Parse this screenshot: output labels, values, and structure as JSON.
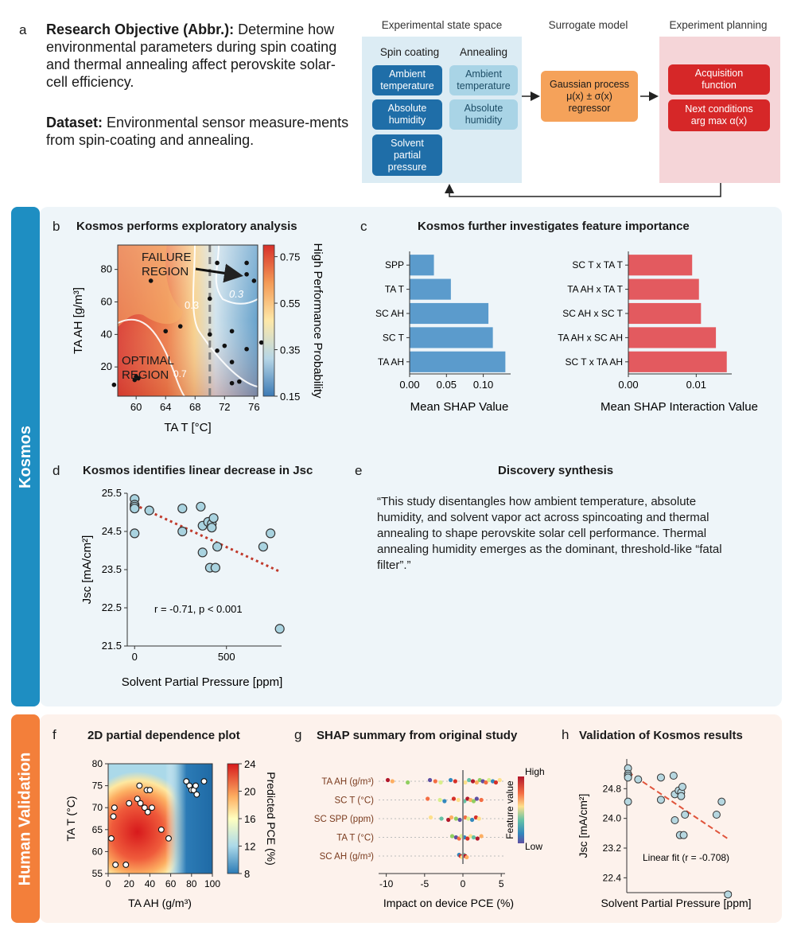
{
  "panel_a": {
    "letter": "a",
    "objective_label": "Research Objective (Abbr.):",
    "objective_text": "Determine how environmental parameters during spin coating and thermal annealing affect perovskite solar-cell efficiency.",
    "dataset_label": "Dataset:",
    "dataset_text": "Environmental sensor measure-ments from spin-coating and annealing.",
    "diagram": {
      "state_space_title": "Experimental state space",
      "surrogate_title": "Surrogate model",
      "planning_title": "Experiment planning",
      "spin_coating_header": "Spin coating",
      "annealing_header": "Annealing",
      "spin_boxes": [
        "Ambient\ntemperature",
        "Absolute\nhumidity",
        "Solvent\npartial\npressure"
      ],
      "anneal_boxes": [
        "Ambient\ntemperature",
        "Absolute\nhumidity"
      ],
      "surrogate_box": "Gaussian process\nμ(x) ± σ(x)\nregressor",
      "planning_boxes": [
        "Acquisition\nfunction",
        "Next conditions\narg max α(x)"
      ],
      "colors": {
        "state_bg": "#dcecf4",
        "planning_bg": "#f5d5d8",
        "dark_blue": "#1f6ea8",
        "light_blue": "#a9d4e6",
        "orange": "#f5a25a",
        "red": "#d62728"
      }
    }
  },
  "kosmos_tab": "Kosmos",
  "human_tab": "Human Validation",
  "panel_b": {
    "letter": "b",
    "title": "Kosmos performs exploratory analysis",
    "failure_label": "FAILURE\nREGION",
    "optimal_label": "OPTIMAL\nREGION",
    "contour_labels": [
      "0.3",
      "0.3",
      "0.7"
    ],
    "chart_data": {
      "type": "heatmap",
      "xlabel": "TA T [°C]",
      "ylabel": "TA AH [g/m³]",
      "xticks": [
        "60",
        "64",
        "68",
        "72",
        "76"
      ],
      "yticks": [
        "20",
        "40",
        "60",
        "80"
      ],
      "colorbar_label": "High Performance Probability",
      "colorbar_ticks": [
        "0.75",
        "0.55",
        "0.35",
        "0.15"
      ],
      "threshold_x": 70,
      "points": [
        [
          57,
          9
        ],
        [
          60,
          14
        ],
        [
          60.3,
          13
        ],
        [
          59.8,
          12
        ],
        [
          62,
          73
        ],
        [
          64,
          42
        ],
        [
          66,
          45
        ],
        [
          70,
          40
        ],
        [
          70,
          62
        ],
        [
          71,
          84
        ],
        [
          72,
          33
        ],
        [
          71,
          30
        ],
        [
          73,
          23
        ],
        [
          73,
          10
        ],
        [
          74,
          11
        ],
        [
          73,
          42
        ],
        [
          75,
          77
        ],
        [
          75,
          84
        ],
        [
          76,
          73
        ],
        [
          77,
          35
        ],
        [
          75,
          31
        ]
      ]
    }
  },
  "panel_c": {
    "letter": "c",
    "title": "Kosmos further investigates feature importance",
    "chart_data": [
      {
        "type": "bar",
        "orientation": "horizontal",
        "categories": [
          "SPP",
          "TA T",
          "SC AH",
          "SC T",
          "TA AH"
        ],
        "values": [
          0.033,
          0.056,
          0.107,
          0.113,
          0.13
        ],
        "xlabel": "Mean SHAP Value",
        "xticks": [
          "0.00",
          "0.05",
          "0.10"
        ],
        "xlim": [
          0,
          0.135
        ],
        "color": "#5b9bcc"
      },
      {
        "type": "bar",
        "orientation": "horizontal",
        "categories": [
          "SC T x TA T",
          "TA AH x TA T",
          "SC AH x SC T",
          "TA AH x SC AH",
          "SC T x TA AH"
        ],
        "values": [
          0.0094,
          0.0104,
          0.0107,
          0.0129,
          0.0145
        ],
        "xlabel": "Mean SHAP Interaction Value",
        "xticks": [
          "0.00",
          "0.01"
        ],
        "xlim": [
          0,
          0.015
        ],
        "color": "#e35a5f"
      }
    ]
  },
  "panel_d": {
    "letter": "d",
    "title": "Kosmos identifies linear decrease in Jsc",
    "annotation": "r = -0.71, p < 0.001",
    "chart_data": {
      "type": "scatter",
      "xlabel": "Solvent Partial Pressure [ppm]",
      "ylabel": "Jsc [mA/cm²]",
      "xticks": [
        "0",
        "500"
      ],
      "yticks": [
        "25.5",
        "24.5",
        "23.5",
        "22.5",
        "21.5"
      ],
      "xlim": [
        -40,
        800
      ],
      "ylim": [
        21.5,
        25.5
      ],
      "points": [
        [
          0,
          25.35
        ],
        [
          0,
          25.2
        ],
        [
          0,
          25.15
        ],
        [
          0,
          25.1
        ],
        [
          0,
          24.45
        ],
        [
          80,
          25.05
        ],
        [
          260,
          25.1
        ],
        [
          260,
          24.5
        ],
        [
          360,
          25.15
        ],
        [
          370,
          24.65
        ],
        [
          370,
          23.95
        ],
        [
          400,
          24.75
        ],
        [
          420,
          24.7
        ],
        [
          420,
          24.6
        ],
        [
          430,
          24.85
        ],
        [
          410,
          23.55
        ],
        [
          440,
          23.55
        ],
        [
          450,
          24.1
        ],
        [
          700,
          24.1
        ],
        [
          740,
          24.45
        ],
        [
          790,
          21.95
        ]
      ],
      "fit": {
        "x": [
          0,
          790
        ],
        "y": [
          25.2,
          23.45
        ]
      }
    }
  },
  "panel_e": {
    "letter": "e",
    "title": "Discovery synthesis",
    "quote": "“This study disentangles how ambient temperature, absolute humidity, and solvent vapor act across spincoating and thermal annealing to shape perovskite solar cell performance. Thermal annealing humidity emerges as the dominant, threshold-like “fatal filter”.”"
  },
  "panel_f": {
    "letter": "f",
    "title": "2D partial dependence plot",
    "chart_data": {
      "type": "heatmap",
      "xlabel": "TA AH (g/m³)",
      "ylabel": "TA T (°C)",
      "xticks": [
        "0",
        "20",
        "40",
        "60",
        "80",
        "100"
      ],
      "yticks": [
        "80",
        "75",
        "70",
        "65",
        "60",
        "55"
      ],
      "xlim": [
        0,
        100
      ],
      "ylim": [
        55,
        80
      ],
      "colorbar_label": "Predicted PCE (%)",
      "colorbar_ticks": [
        "24",
        "20",
        "16",
        "12",
        "8"
      ],
      "points": [
        [
          3,
          63
        ],
        [
          5,
          68
        ],
        [
          6,
          70
        ],
        [
          7,
          57
        ],
        [
          17,
          57
        ],
        [
          20,
          71
        ],
        [
          28,
          72
        ],
        [
          30,
          75
        ],
        [
          31,
          71
        ],
        [
          35,
          70
        ],
        [
          37,
          74
        ],
        [
          38,
          69
        ],
        [
          40,
          74
        ],
        [
          42,
          70
        ],
        [
          51,
          65
        ],
        [
          58,
          63
        ],
        [
          75,
          76
        ],
        [
          78,
          75
        ],
        [
          80,
          74
        ],
        [
          82,
          74
        ],
        [
          84,
          75
        ],
        [
          85,
          73
        ],
        [
          92,
          76
        ]
      ]
    }
  },
  "panel_g": {
    "letter": "g",
    "title": "SHAP summary from original study",
    "chart_data": {
      "type": "scatter",
      "xlabel": "Impact on device PCE (%)",
      "categories": [
        "TA AH (g/m³)",
        "SC T (°C)",
        "SC SPP (ppm)",
        "TA T (°C)",
        "SC AH (g/m³)"
      ],
      "xticks": [
        "-10",
        "-5",
        "0",
        "5"
      ],
      "xlim": [
        -11,
        5.5
      ],
      "colorbar_label": "Feature value",
      "colorbar_high": "High",
      "colorbar_low": "Low"
    }
  },
  "panel_h": {
    "letter": "h",
    "title": "Validation of Kosmos results",
    "annotation": "Linear fit (r = -0.708)",
    "chart_data": {
      "type": "scatter",
      "xlabel": "Solvent Partial Pressure [ppm]",
      "ylabel": "Jsc [mA/cm²]",
      "yticks": [
        "24.8",
        "24.0",
        "23.2",
        "22.4"
      ],
      "ylim": [
        22.0,
        25.6
      ],
      "xlim": [
        -10,
        820
      ],
      "points": [
        [
          0,
          25.35
        ],
        [
          0,
          25.2
        ],
        [
          0,
          25.15
        ],
        [
          0,
          25.1
        ],
        [
          0,
          24.45
        ],
        [
          80,
          25.05
        ],
        [
          260,
          25.1
        ],
        [
          260,
          24.5
        ],
        [
          360,
          25.15
        ],
        [
          370,
          24.65
        ],
        [
          370,
          23.95
        ],
        [
          400,
          24.75
        ],
        [
          420,
          24.7
        ],
        [
          420,
          24.6
        ],
        [
          430,
          24.85
        ],
        [
          410,
          23.55
        ],
        [
          440,
          23.55
        ],
        [
          450,
          24.1
        ],
        [
          700,
          24.1
        ],
        [
          740,
          24.45
        ],
        [
          790,
          21.95
        ]
      ],
      "fit": {
        "x": [
          0,
          790
        ],
        "y": [
          25.25,
          23.45
        ]
      }
    }
  }
}
